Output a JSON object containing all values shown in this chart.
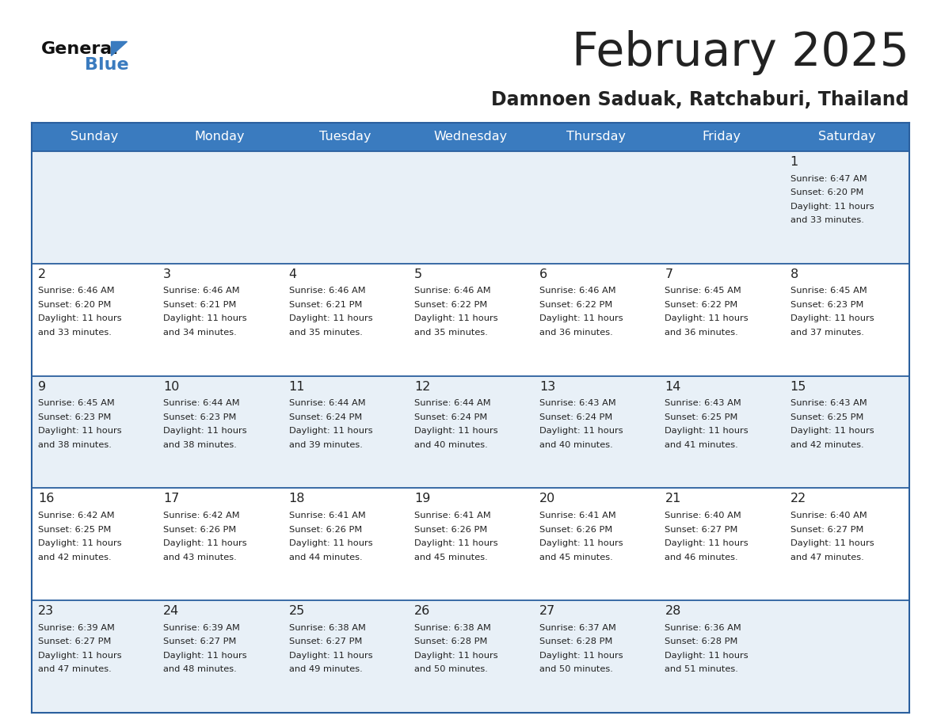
{
  "title": "February 2025",
  "subtitle": "Damnoen Saduak, Ratchaburi, Thailand",
  "header_color": "#3a7bbf",
  "header_text_color": "#ffffff",
  "cell_bg_color": "#e8f0f7",
  "cell_bg_white": "#ffffff",
  "border_color": "#2a5f9e",
  "text_color": "#222222",
  "days_of_week": [
    "Sunday",
    "Monday",
    "Tuesday",
    "Wednesday",
    "Thursday",
    "Friday",
    "Saturday"
  ],
  "calendar_data": [
    [
      null,
      null,
      null,
      null,
      null,
      null,
      {
        "day": "1",
        "sunrise": "6:47 AM",
        "sunset": "6:20 PM",
        "daylight_line1": "Daylight: 11 hours",
        "daylight_line2": "and 33 minutes."
      }
    ],
    [
      {
        "day": "2",
        "sunrise": "6:46 AM",
        "sunset": "6:20 PM",
        "daylight_line1": "Daylight: 11 hours",
        "daylight_line2": "and 33 minutes."
      },
      {
        "day": "3",
        "sunrise": "6:46 AM",
        "sunset": "6:21 PM",
        "daylight_line1": "Daylight: 11 hours",
        "daylight_line2": "and 34 minutes."
      },
      {
        "day": "4",
        "sunrise": "6:46 AM",
        "sunset": "6:21 PM",
        "daylight_line1": "Daylight: 11 hours",
        "daylight_line2": "and 35 minutes."
      },
      {
        "day": "5",
        "sunrise": "6:46 AM",
        "sunset": "6:22 PM",
        "daylight_line1": "Daylight: 11 hours",
        "daylight_line2": "and 35 minutes."
      },
      {
        "day": "6",
        "sunrise": "6:46 AM",
        "sunset": "6:22 PM",
        "daylight_line1": "Daylight: 11 hours",
        "daylight_line2": "and 36 minutes."
      },
      {
        "day": "7",
        "sunrise": "6:45 AM",
        "sunset": "6:22 PM",
        "daylight_line1": "Daylight: 11 hours",
        "daylight_line2": "and 36 minutes."
      },
      {
        "day": "8",
        "sunrise": "6:45 AM",
        "sunset": "6:23 PM",
        "daylight_line1": "Daylight: 11 hours",
        "daylight_line2": "and 37 minutes."
      }
    ],
    [
      {
        "day": "9",
        "sunrise": "6:45 AM",
        "sunset": "6:23 PM",
        "daylight_line1": "Daylight: 11 hours",
        "daylight_line2": "and 38 minutes."
      },
      {
        "day": "10",
        "sunrise": "6:44 AM",
        "sunset": "6:23 PM",
        "daylight_line1": "Daylight: 11 hours",
        "daylight_line2": "and 38 minutes."
      },
      {
        "day": "11",
        "sunrise": "6:44 AM",
        "sunset": "6:24 PM",
        "daylight_line1": "Daylight: 11 hours",
        "daylight_line2": "and 39 minutes."
      },
      {
        "day": "12",
        "sunrise": "6:44 AM",
        "sunset": "6:24 PM",
        "daylight_line1": "Daylight: 11 hours",
        "daylight_line2": "and 40 minutes."
      },
      {
        "day": "13",
        "sunrise": "6:43 AM",
        "sunset": "6:24 PM",
        "daylight_line1": "Daylight: 11 hours",
        "daylight_line2": "and 40 minutes."
      },
      {
        "day": "14",
        "sunrise": "6:43 AM",
        "sunset": "6:25 PM",
        "daylight_line1": "Daylight: 11 hours",
        "daylight_line2": "and 41 minutes."
      },
      {
        "day": "15",
        "sunrise": "6:43 AM",
        "sunset": "6:25 PM",
        "daylight_line1": "Daylight: 11 hours",
        "daylight_line2": "and 42 minutes."
      }
    ],
    [
      {
        "day": "16",
        "sunrise": "6:42 AM",
        "sunset": "6:25 PM",
        "daylight_line1": "Daylight: 11 hours",
        "daylight_line2": "and 42 minutes."
      },
      {
        "day": "17",
        "sunrise": "6:42 AM",
        "sunset": "6:26 PM",
        "daylight_line1": "Daylight: 11 hours",
        "daylight_line2": "and 43 minutes."
      },
      {
        "day": "18",
        "sunrise": "6:41 AM",
        "sunset": "6:26 PM",
        "daylight_line1": "Daylight: 11 hours",
        "daylight_line2": "and 44 minutes."
      },
      {
        "day": "19",
        "sunrise": "6:41 AM",
        "sunset": "6:26 PM",
        "daylight_line1": "Daylight: 11 hours",
        "daylight_line2": "and 45 minutes."
      },
      {
        "day": "20",
        "sunrise": "6:41 AM",
        "sunset": "6:26 PM",
        "daylight_line1": "Daylight: 11 hours",
        "daylight_line2": "and 45 minutes."
      },
      {
        "day": "21",
        "sunrise": "6:40 AM",
        "sunset": "6:27 PM",
        "daylight_line1": "Daylight: 11 hours",
        "daylight_line2": "and 46 minutes."
      },
      {
        "day": "22",
        "sunrise": "6:40 AM",
        "sunset": "6:27 PM",
        "daylight_line1": "Daylight: 11 hours",
        "daylight_line2": "and 47 minutes."
      }
    ],
    [
      {
        "day": "23",
        "sunrise": "6:39 AM",
        "sunset": "6:27 PM",
        "daylight_line1": "Daylight: 11 hours",
        "daylight_line2": "and 47 minutes."
      },
      {
        "day": "24",
        "sunrise": "6:39 AM",
        "sunset": "6:27 PM",
        "daylight_line1": "Daylight: 11 hours",
        "daylight_line2": "and 48 minutes."
      },
      {
        "day": "25",
        "sunrise": "6:38 AM",
        "sunset": "6:27 PM",
        "daylight_line1": "Daylight: 11 hours",
        "daylight_line2": "and 49 minutes."
      },
      {
        "day": "26",
        "sunrise": "6:38 AM",
        "sunset": "6:28 PM",
        "daylight_line1": "Daylight: 11 hours",
        "daylight_line2": "and 50 minutes."
      },
      {
        "day": "27",
        "sunrise": "6:37 AM",
        "sunset": "6:28 PM",
        "daylight_line1": "Daylight: 11 hours",
        "daylight_line2": "and 50 minutes."
      },
      {
        "day": "28",
        "sunrise": "6:36 AM",
        "sunset": "6:28 PM",
        "daylight_line1": "Daylight: 11 hours",
        "daylight_line2": "and 51 minutes."
      },
      null
    ]
  ],
  "logo_general_color": "#111111",
  "logo_blue_color": "#3a7bbf",
  "logo_triangle_color": "#3a7bbf"
}
